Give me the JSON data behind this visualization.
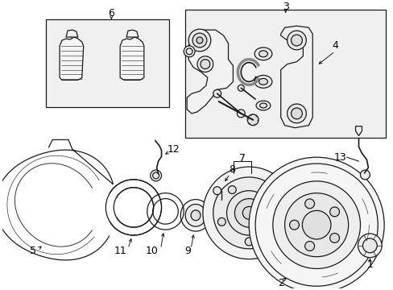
{
  "bg": "#ffffff",
  "lc": "#1a1a1a",
  "box_fill": "#f0f0f0",
  "lw": 0.9,
  "figsize": [
    4.89,
    3.6
  ],
  "dpi": 100
}
